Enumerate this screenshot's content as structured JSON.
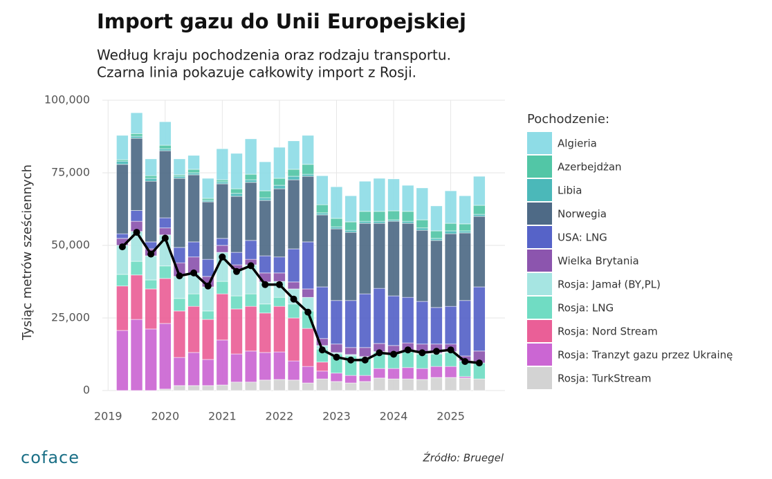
{
  "chart_data": {
    "type": "stacked_bar_line",
    "title": "Import gazu do Unii Europejskiej",
    "subtitle": [
      "Według kraju pochodzenia oraz rodzaju transportu.",
      "Czarna linia pokazuje całkowity import z Rosji."
    ],
    "y_label": "Tysiąc metrów sześciennych",
    "legend_title": "Pochodzenie:",
    "source": "Źródło: Bruegel",
    "x": [
      2019.25,
      2019.5,
      2019.75,
      2020.0,
      2020.25,
      2020.5,
      2020.75,
      2021.0,
      2021.25,
      2021.5,
      2021.75,
      2022.0,
      2022.25,
      2022.5,
      2022.75,
      2023.0,
      2023.25,
      2023.5,
      2023.75,
      2024.0,
      2024.25,
      2024.5,
      2024.75,
      2025.0,
      2025.25,
      2025.5
    ],
    "xlim": [
      2018.9,
      2025.95
    ],
    "xticks": [
      2019,
      2020,
      2021,
      2022,
      2023,
      2024,
      2025
    ],
    "ylim": [
      0,
      100000
    ],
    "yticks": [
      0,
      {
        "value": 25000,
        "label": "25,000"
      },
      {
        "value": 50000,
        "label": "50,000"
      },
      {
        "value": 75000,
        "label": "75,000"
      },
      {
        "value": 100000,
        "label": "100,000"
      }
    ],
    "grid": true,
    "series": [
      {
        "name": "Algieria",
        "color": "#8edce6",
        "values": [
          8400,
          7200,
          5800,
          8100,
          5500,
          4800,
          6900,
          10700,
          12200,
          12200,
          10000,
          10700,
          9800,
          10000,
          10000,
          10900,
          9000,
          10400,
          11400,
          11000,
          9000,
          11000,
          8600,
          11200,
          9700,
          10000
        ]
      },
      {
        "name": "Azerbejdżan",
        "color": "#52c6a6",
        "values": [
          500,
          900,
          900,
          1200,
          500,
          1200,
          700,
          700,
          1600,
          1900,
          2400,
          2400,
          2400,
          3400,
          2800,
          2900,
          2900,
          3400,
          3400,
          3100,
          3400,
          2800,
          2600,
          2600,
          2400,
          3100
        ]
      },
      {
        "name": "Libia",
        "color": "#4bb8b9",
        "values": [
          1100,
          700,
          1000,
          700,
          700,
          700,
          500,
          700,
          1000,
          900,
          900,
          1200,
          1200,
          700,
          700,
          700,
          700,
          700,
          700,
          500,
          700,
          800,
          700,
          1000,
          700,
          700
        ]
      },
      {
        "name": "Norwegia",
        "color": "#4e6a86",
        "values": [
          23900,
          24900,
          20900,
          23100,
          23800,
          23100,
          19800,
          18800,
          19300,
          20000,
          19100,
          23500,
          23800,
          22600,
          24800,
          24700,
          23500,
          24300,
          22400,
          25700,
          25500,
          24500,
          23100,
          25000,
          23300,
          24300
        ]
      },
      {
        "name": "USA: LNG",
        "color": "#5663c8",
        "values": [
          1600,
          3700,
          2400,
          3500,
          5300,
          5200,
          5900,
          2400,
          4300,
          6500,
          5900,
          5500,
          11400,
          16200,
          17800,
          15000,
          16200,
          18500,
          19000,
          17100,
          15700,
          14700,
          12600,
          13000,
          19100,
          22100
        ]
      },
      {
        "name": "Wielka Brytania",
        "color": "#8c55ae",
        "values": [
          2400,
          3500,
          2400,
          2400,
          4700,
          5500,
          3600,
          2400,
          1600,
          1900,
          3100,
          2900,
          2400,
          2900,
          2400,
          2900,
          2400,
          3100,
          2800,
          2600,
          2800,
          3100,
          3100,
          2600,
          1700,
          4100
        ]
      },
      {
        "name": "Rosja: Jamał (BY,PL)",
        "color": "#a6e5e2",
        "values": [
          10000,
          10300,
          8300,
          10700,
          7600,
          7200,
          8300,
          10000,
          9100,
          10000,
          7600,
          5500,
          5200,
          4700,
          1200,
          500,
          500,
          300,
          300,
          300,
          300,
          300,
          300,
          300,
          0,
          0
        ]
      },
      {
        "name": "Rosja: LNG",
        "color": "#70dcc3",
        "values": [
          4000,
          4700,
          3100,
          4300,
          4300,
          4300,
          2900,
          4300,
          4500,
          4300,
          3100,
          3100,
          4800,
          6000,
          4500,
          6600,
          6700,
          6200,
          5500,
          5000,
          5400,
          5000,
          4300,
          4800,
          5400,
          5500
        ]
      },
      {
        "name": "Rosja: Nord Stream",
        "color": "#ea5f97",
        "values": [
          15300,
          15300,
          13800,
          15500,
          16000,
          15900,
          13800,
          15900,
          15500,
          15400,
          13600,
          15700,
          14800,
          13100,
          3100,
          0,
          0,
          0,
          0,
          0,
          0,
          0,
          0,
          0,
          0,
          0
        ]
      },
      {
        "name": "Rosja: Tranzyt gazu przez Ukrainę",
        "color": "#cb66d3",
        "values": [
          20700,
          24500,
          21200,
          22600,
          9700,
          11400,
          9000,
          15500,
          9700,
          10700,
          9500,
          9500,
          6600,
          5700,
          2700,
          2900,
          2600,
          2100,
          3300,
          3600,
          3900,
          3800,
          3800,
          3800,
          500,
          0
        ]
      },
      {
        "name": "Rosja: TurkStream",
        "color": "#d3d3d3",
        "values": [
          0,
          0,
          0,
          500,
          1700,
          1700,
          1700,
          1900,
          2900,
          2900,
          3600,
          3800,
          3600,
          2600,
          4000,
          3100,
          2600,
          3100,
          4300,
          4000,
          4000,
          3800,
          4500,
          4500,
          4300,
          4000
        ]
      }
    ],
    "line": {
      "color": "#000000",
      "values": [
        49500,
        54500,
        47000,
        52500,
        39500,
        40500,
        36000,
        46000,
        41000,
        43000,
        36500,
        36500,
        31500,
        27000,
        14000,
        11500,
        10500,
        10500,
        13000,
        12500,
        14000,
        13000,
        13500,
        14000,
        10000,
        9500
      ]
    }
  },
  "logo": "coface"
}
